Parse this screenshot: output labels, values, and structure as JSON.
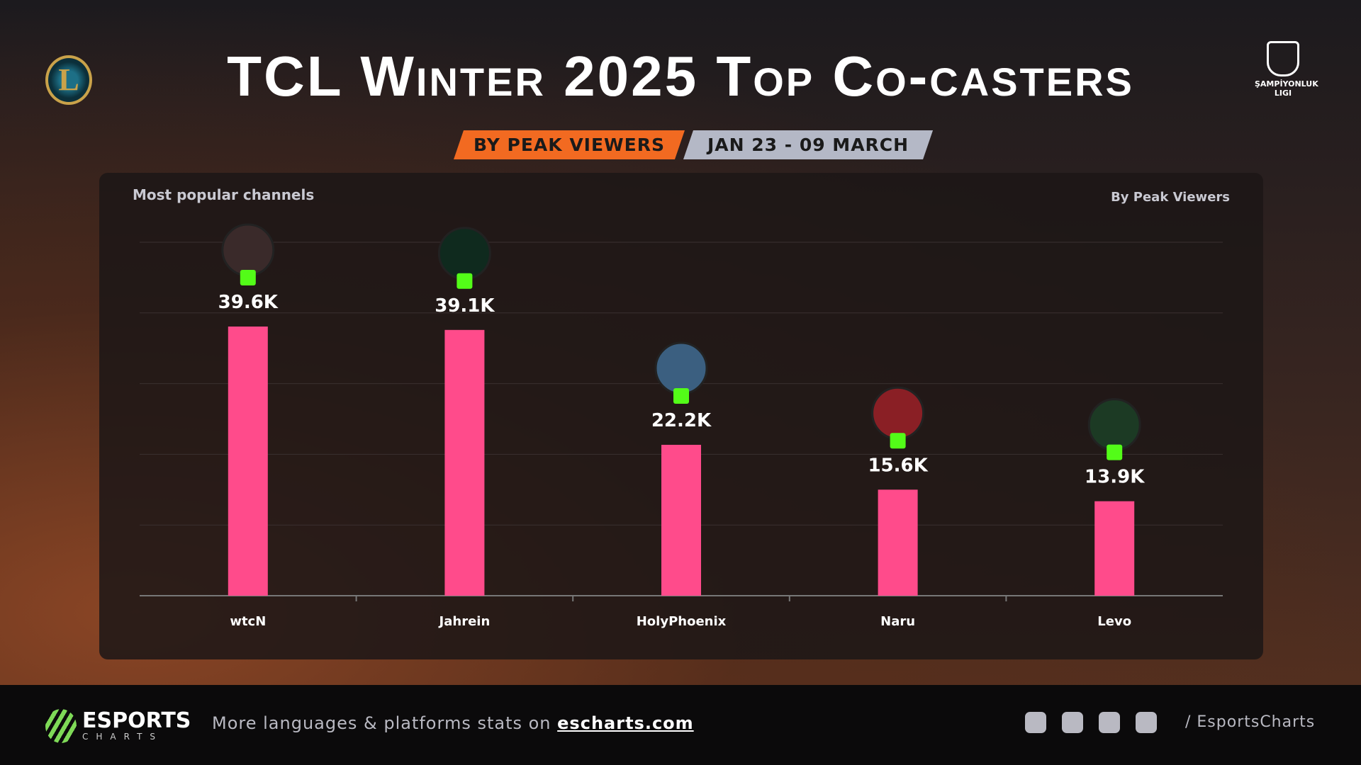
{
  "header": {
    "title": "TCL Winter 2025 Top Co-casters",
    "badge_metric": "BY PEAK VIEWERS",
    "badge_dates": "JAN 23 - 09 MARCH",
    "league_logo": "ŞAMPİYONLUK LIGI"
  },
  "chart_data": {
    "type": "bar",
    "subtitle": "Most popular channels",
    "annotation": "By Peak Viewers",
    "categories": [
      "wtcN",
      "Jahrein",
      "HolyPhoenix",
      "Naru",
      "Levo"
    ],
    "values": [
      39600,
      39100,
      22200,
      15600,
      13900
    ],
    "value_labels": [
      "39.6K",
      "39.1K",
      "22.2K",
      "15.6K",
      "13.9K"
    ],
    "color": "#ff4b8b",
    "ylim": [
      0,
      52000
    ]
  },
  "footer": {
    "brand": "ESPORTS",
    "brand_sub": "CHARTS",
    "text": "More languages & platforms stats on",
    "link": "escharts.com",
    "handle": "/ EsportsCharts"
  }
}
